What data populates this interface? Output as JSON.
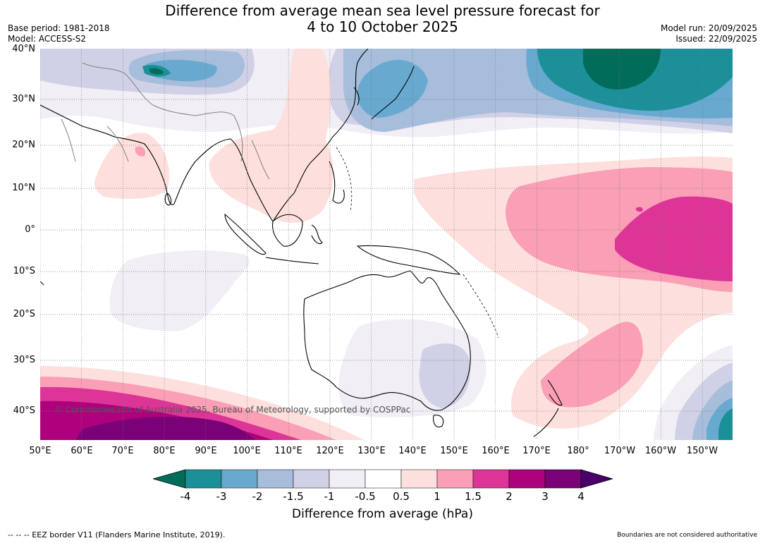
{
  "title": {
    "line1": "Difference from average mean sea level pressure forecast for",
    "line2": "4 to 10 October 2025"
  },
  "meta": {
    "base_period": "Base period: 1981-2018",
    "model": "Model: ACCESS-S2",
    "model_run": "Model run: 20/09/2025",
    "issued": "Issued: 22/09/2025"
  },
  "map": {
    "lat_labels": [
      "40°N",
      "30°N",
      "20°N",
      "10°N",
      "0°",
      "10°S",
      "20°S",
      "30°S",
      "40°S"
    ],
    "lon_labels": [
      "50°E",
      "60°E",
      "70°E",
      "80°E",
      "90°E",
      "100°E",
      "110°E",
      "120°E",
      "130°E",
      "140°E",
      "150°E",
      "160°E",
      "170°E",
      "180°",
      "170°W",
      "160°W",
      "150°W"
    ],
    "copyright": "© Commonwealth of Australia 2025, Bureau of Meteorology, supported by COSPPac"
  },
  "colorbar": {
    "labels": [
      "-4",
      "-3",
      "-2",
      "-1.5",
      "-1",
      "-0.5",
      "0.5",
      "1",
      "1.5",
      "2",
      "3",
      "4"
    ],
    "colors": [
      "#1c9099",
      "#67a9cf",
      "#a6bddb",
      "#d0d1e6",
      "#f1eef6",
      "#ffffff",
      "#fde0dd",
      "#fa9fb5",
      "#dd3497",
      "#ae017e",
      "#7a0177"
    ],
    "low_color": "#016c59",
    "high_color": "#49006a",
    "title": "Difference from average (hPa)"
  },
  "footer": {
    "eez": "--  --  -- EEZ border V11 (Flanders Marine Institute, 2019).",
    "disclaimer": "Boundaries are not considered authoritative"
  }
}
